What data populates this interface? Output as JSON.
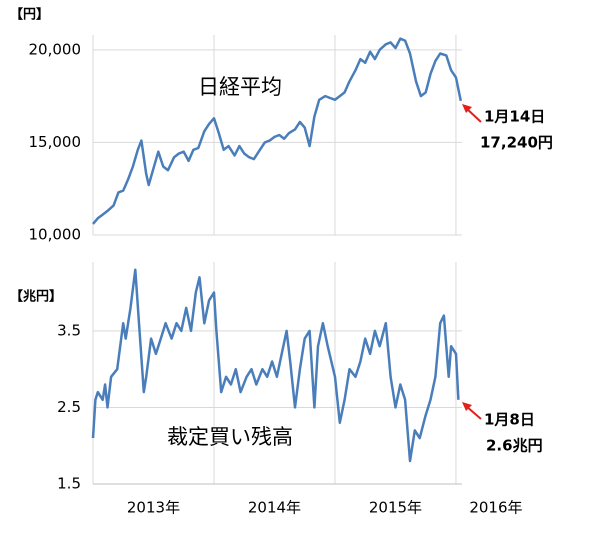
{
  "chart_data": [
    {
      "type": "line",
      "ylabel": "【円】",
      "label": "日経平均",
      "callout": [
        "1月14日",
        "17,240円"
      ],
      "callout_color": "#e0201b",
      "xlim": [
        2013,
        2016.05
      ],
      "ylim": [
        10000,
        20800
      ],
      "yticks": [
        {
          "value": 10000,
          "label": "10,000"
        },
        {
          "value": 15000,
          "label": "15,000"
        },
        {
          "value": 20000,
          "label": "20,000"
        }
      ],
      "grid": true,
      "series": [
        {
          "name": "日経平均",
          "color": "#4a7ebb",
          "x": [
            2013.0,
            2013.04,
            2013.08,
            2013.12,
            2013.17,
            2013.21,
            2013.25,
            2013.29,
            2013.33,
            2013.37,
            2013.4,
            2013.44,
            2013.46,
            2013.5,
            2013.54,
            2013.58,
            2013.62,
            2013.67,
            2013.71,
            2013.75,
            2013.79,
            2013.83,
            2013.87,
            2013.92,
            2013.96,
            2014.0,
            2014.04,
            2014.08,
            2014.12,
            2014.17,
            2014.21,
            2014.25,
            2014.29,
            2014.33,
            2014.37,
            2014.42,
            2014.46,
            2014.5,
            2014.54,
            2014.58,
            2014.62,
            2014.67,
            2014.71,
            2014.75,
            2014.79,
            2014.83,
            2014.87,
            2014.92,
            2014.96,
            2015.0,
            2015.04,
            2015.08,
            2015.12,
            2015.17,
            2015.21,
            2015.25,
            2015.29,
            2015.33,
            2015.37,
            2015.42,
            2015.46,
            2015.5,
            2015.54,
            2015.58,
            2015.62,
            2015.67,
            2015.71,
            2015.75,
            2015.79,
            2015.83,
            2015.87,
            2015.92,
            2015.96,
            2016.0,
            2016.04
          ],
          "values": [
            10600,
            10900,
            11100,
            11300,
            11600,
            12300,
            12400,
            13000,
            13700,
            14600,
            15100,
            13300,
            12700,
            13600,
            14500,
            13700,
            13500,
            14200,
            14400,
            14500,
            14000,
            14600,
            14700,
            15600,
            16000,
            16300,
            15500,
            14600,
            14800,
            14300,
            14800,
            14400,
            14200,
            14100,
            14500,
            15000,
            15100,
            15300,
            15400,
            15200,
            15500,
            15700,
            16100,
            15800,
            14800,
            16400,
            17300,
            17500,
            17400,
            17300,
            17500,
            17700,
            18300,
            18900,
            19500,
            19300,
            19900,
            19500,
            20000,
            20300,
            20400,
            20100,
            20600,
            20500,
            19800,
            18300,
            17500,
            17700,
            18700,
            19400,
            19800,
            19700,
            18900,
            18500,
            17240
          ]
        }
      ]
    },
    {
      "type": "line",
      "ylabel": "【兆円】",
      "label": "裁定買い残高",
      "callout": [
        "1月8日",
        "2.6兆円"
      ],
      "callout_color": "#e0201b",
      "xlim": [
        2013,
        2016.05
      ],
      "ylim": [
        1.5,
        4.4
      ],
      "yticks": [
        1.5,
        2.5,
        3.5
      ],
      "xticks": [
        {
          "value": 2013,
          "label": "2013年"
        },
        {
          "value": 2014,
          "label": "2014年"
        },
        {
          "value": 2015,
          "label": "2015年"
        },
        {
          "value": 2016,
          "label": "2016年"
        }
      ],
      "grid": true,
      "series": [
        {
          "name": "裁定買い残高",
          "color": "#4a7ebb",
          "x": [
            2013.0,
            2013.02,
            2013.04,
            2013.08,
            2013.1,
            2013.12,
            2013.15,
            2013.2,
            2013.25,
            2013.27,
            2013.31,
            2013.35,
            2013.38,
            2013.42,
            2013.44,
            2013.48,
            2013.52,
            2013.56,
            2013.6,
            2013.65,
            2013.69,
            2013.73,
            2013.77,
            2013.81,
            2013.85,
            2013.88,
            2013.92,
            2013.96,
            2014.0,
            2014.02,
            2014.06,
            2014.1,
            2014.14,
            2014.18,
            2014.22,
            2014.27,
            2014.31,
            2014.35,
            2014.4,
            2014.44,
            2014.48,
            2014.52,
            2014.56,
            2014.6,
            2014.63,
            2014.67,
            2014.71,
            2014.75,
            2014.79,
            2014.83,
            2014.86,
            2014.9,
            2014.94,
            2015.0,
            2015.04,
            2015.08,
            2015.12,
            2015.17,
            2015.21,
            2015.25,
            2015.29,
            2015.33,
            2015.37,
            2015.42,
            2015.46,
            2015.5,
            2015.54,
            2015.58,
            2015.62,
            2015.66,
            2015.7,
            2015.75,
            2015.79,
            2015.83,
            2015.87,
            2015.9,
            2015.94,
            2015.96,
            2016.0,
            2016.02
          ],
          "values": [
            2.1,
            2.6,
            2.7,
            2.6,
            2.8,
            2.5,
            2.9,
            3.0,
            3.6,
            3.4,
            3.8,
            4.3,
            3.6,
            2.7,
            2.9,
            3.4,
            3.2,
            3.4,
            3.6,
            3.4,
            3.6,
            3.5,
            3.8,
            3.5,
            4.0,
            4.2,
            3.6,
            3.9,
            4.0,
            3.5,
            2.7,
            2.9,
            2.8,
            3.0,
            2.7,
            2.9,
            3.0,
            2.8,
            3.0,
            2.9,
            3.1,
            2.9,
            3.2,
            3.5,
            3.1,
            2.5,
            3.0,
            3.4,
            3.5,
            2.5,
            3.3,
            3.6,
            3.3,
            2.9,
            2.3,
            2.6,
            3.0,
            2.9,
            3.1,
            3.4,
            3.2,
            3.5,
            3.3,
            3.6,
            2.9,
            2.5,
            2.8,
            2.6,
            1.8,
            2.2,
            2.1,
            2.4,
            2.6,
            2.9,
            3.6,
            3.7,
            2.9,
            3.3,
            3.2,
            2.6
          ]
        }
      ]
    }
  ]
}
